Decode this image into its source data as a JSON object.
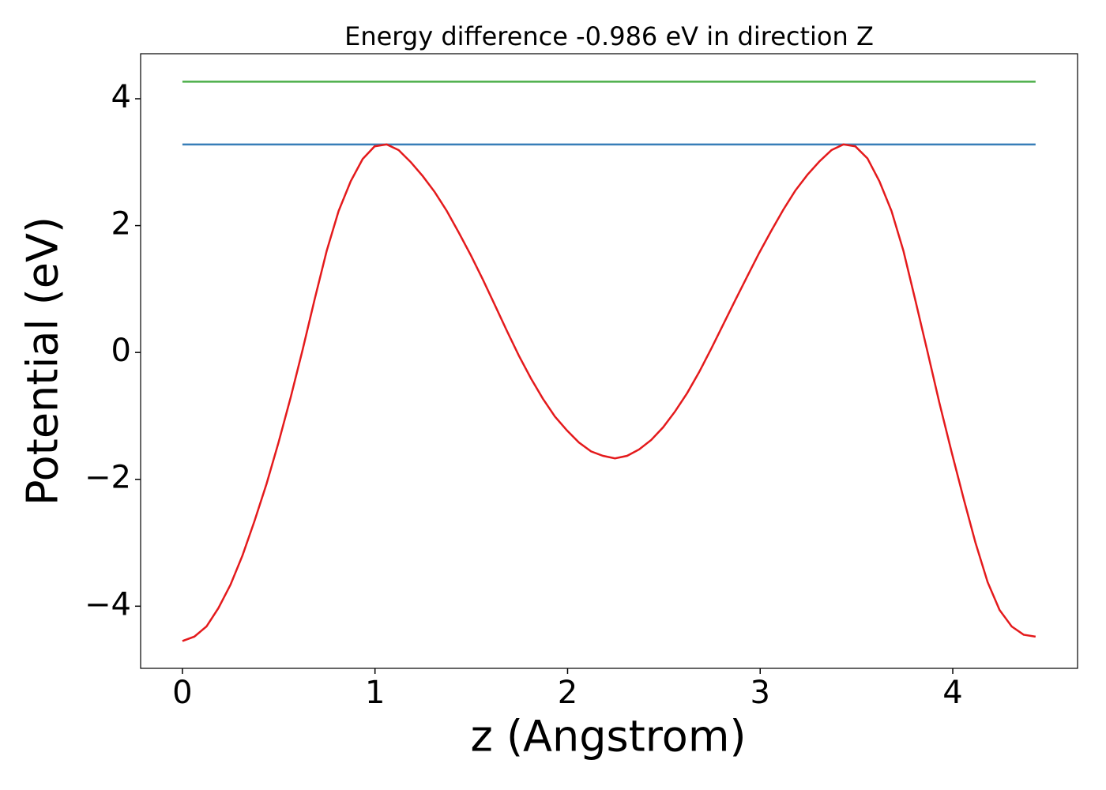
{
  "chart_data": {
    "type": "line",
    "title": "Energy difference -0.986 eV in direction Z",
    "xlabel": "z (Angstrom)",
    "ylabel": "Potential (eV)",
    "xlim": [
      -0.217,
      4.648
    ],
    "ylim": [
      -4.98,
      4.71
    ],
    "xticks": [
      0,
      1,
      2,
      3,
      4
    ],
    "yticks": [
      {
        "value": -4,
        "label": "−4"
      },
      {
        "value": -2,
        "label": "−2"
      },
      0,
      2,
      4
    ],
    "series": [
      {
        "color": "#4daf4a",
        "x": [
          0,
          4.43
        ],
        "values": [
          4.27,
          4.27
        ]
      },
      {
        "color": "#377eb8",
        "x": [
          0,
          4.43
        ],
        "values": [
          3.28,
          3.28
        ]
      },
      {
        "color": "#e41a1c",
        "x": [
          0,
          0.062,
          0.125,
          0.187,
          0.25,
          0.312,
          0.374,
          0.437,
          0.499,
          0.562,
          0.624,
          0.686,
          0.749,
          0.811,
          0.874,
          0.936,
          0.998,
          1.061,
          1.123,
          1.186,
          1.248,
          1.31,
          1.373,
          1.435,
          1.498,
          1.56,
          1.622,
          1.685,
          1.747,
          1.81,
          1.872,
          1.934,
          1.997,
          2.059,
          2.122,
          2.184,
          2.246,
          2.309,
          2.371,
          2.434,
          2.496,
          2.558,
          2.621,
          2.683,
          2.746,
          2.808,
          2.87,
          2.933,
          2.995,
          3.058,
          3.12,
          3.182,
          3.245,
          3.307,
          3.37,
          3.432,
          3.494,
          3.557,
          3.619,
          3.682,
          3.744,
          3.806,
          3.869,
          3.931,
          3.994,
          4.056,
          4.118,
          4.181,
          4.243,
          4.306,
          4.368,
          4.43
        ],
        "values": [
          -4.55,
          -4.48,
          -4.32,
          -4.03,
          -3.66,
          -3.2,
          -2.66,
          -2.07,
          -1.42,
          -0.71,
          0.04,
          0.83,
          1.6,
          2.23,
          2.7,
          3.05,
          3.25,
          3.28,
          3.19,
          3.0,
          2.78,
          2.53,
          2.23,
          1.89,
          1.53,
          1.15,
          0.75,
          0.34,
          -0.05,
          -0.41,
          -0.73,
          -1.01,
          -1.23,
          -1.42,
          -1.56,
          -1.63,
          -1.67,
          -1.63,
          -1.53,
          -1.38,
          -1.18,
          -0.93,
          -0.64,
          -0.31,
          0.06,
          0.44,
          0.82,
          1.2,
          1.57,
          1.92,
          2.25,
          2.55,
          2.8,
          3.01,
          3.19,
          3.28,
          3.25,
          3.06,
          2.7,
          2.23,
          1.6,
          0.82,
          0.01,
          -0.8,
          -1.57,
          -2.3,
          -3.0,
          -3.62,
          -4.06,
          -4.32,
          -4.45,
          -4.48
        ]
      }
    ]
  }
}
